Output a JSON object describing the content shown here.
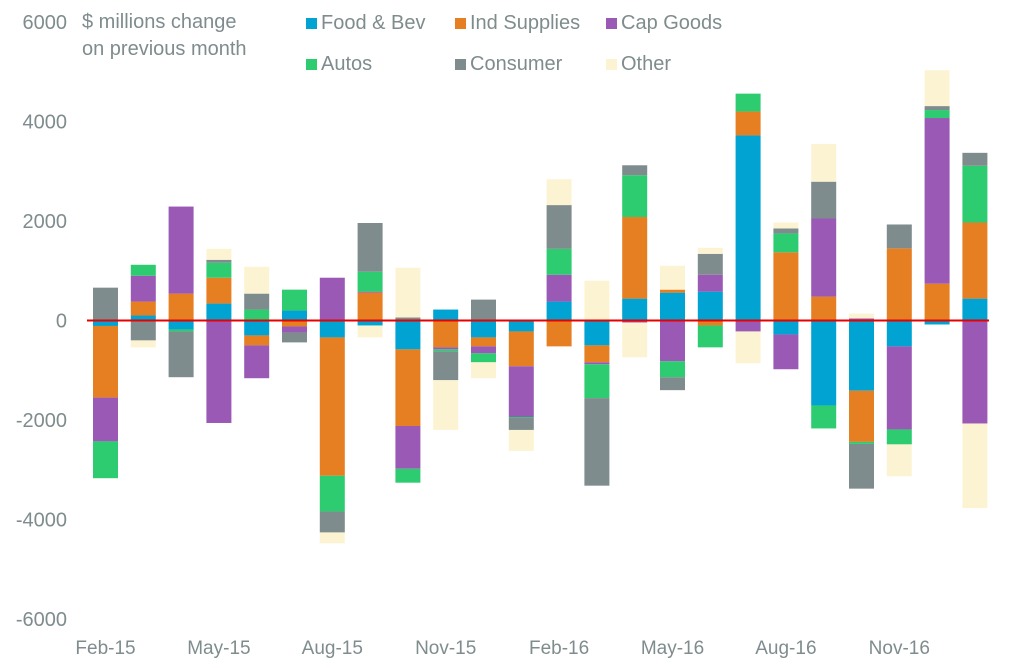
{
  "chart_data": {
    "type": "bar",
    "stacked": true,
    "title": "$ millions change on previous month",
    "title_lines": [
      "$ millions change",
      "on previous month"
    ],
    "xlabel": "",
    "ylabel": "",
    "ylim": [
      -6000,
      6000
    ],
    "yticks": [
      6000,
      4000,
      2000,
      0,
      -2000,
      -4000,
      -6000
    ],
    "ytick_labels": [
      "6000",
      "4000",
      "2000",
      "0",
      "-2000",
      "-4000",
      "-6000"
    ],
    "grid": false,
    "zero_line_color": "#e60000",
    "legend_position": "top",
    "categories": [
      "Feb-15",
      "Mar-15",
      "Apr-15",
      "May-15",
      "Jun-15",
      "Jul-15",
      "Aug-15",
      "Sep-15",
      "Oct-15",
      "Nov-15",
      "Dec-15",
      "Jan-16",
      "Feb-16",
      "Mar-16",
      "Apr-16",
      "May-16",
      "Jun-16",
      "Jul-16",
      "Aug-16",
      "Sep-16",
      "Oct-16",
      "Nov-16",
      "Dec-16",
      "Jan-17"
    ],
    "xtick_labels": [
      {
        "index": 0,
        "label": "Feb-15"
      },
      {
        "index": 3,
        "label": "May-15"
      },
      {
        "index": 6,
        "label": "Aug-15"
      },
      {
        "index": 9,
        "label": "Nov-15"
      },
      {
        "index": 12,
        "label": "Feb-16"
      },
      {
        "index": 15,
        "label": "May-16"
      },
      {
        "index": 18,
        "label": "Aug-16"
      },
      {
        "index": 21,
        "label": "Nov-16"
      }
    ],
    "series": [
      {
        "name": "Food & Bev",
        "color": "#00a3d1",
        "values": [
          -110,
          100,
          -180,
          340,
          -300,
          200,
          -340,
          -100,
          -580,
          220,
          -340,
          -220,
          380,
          -500,
          440,
          560,
          580,
          3720,
          -280,
          -1710,
          -1410,
          -520,
          -80,
          440
        ]
      },
      {
        "name": "Ind Supplies",
        "color": "#e67e22",
        "values": [
          -1440,
          280,
          540,
          520,
          -200,
          -120,
          -2780,
          560,
          -1540,
          -540,
          -180,
          -700,
          -520,
          -340,
          1640,
          60,
          -100,
          480,
          1370,
          480,
          -1030,
          1450,
          740,
          1530
        ]
      },
      {
        "name": "Cap Goods",
        "color": "#9b59b6",
        "values": [
          -880,
          520,
          1750,
          -2060,
          -660,
          -120,
          860,
          20,
          -860,
          -40,
          -140,
          -1020,
          540,
          -40,
          -40,
          -820,
          340,
          -220,
          -700,
          1570,
          40,
          -1670,
          3330,
          -2070
        ]
      },
      {
        "name": "Autos",
        "color": "#2ecc71",
        "values": [
          -740,
          220,
          -40,
          300,
          220,
          420,
          -720,
          400,
          -280,
          -40,
          -180,
          -20,
          520,
          -680,
          840,
          -320,
          -440,
          360,
          380,
          -460,
          -40,
          -300,
          160,
          1140
        ]
      },
      {
        "name": "Consumer",
        "color": "#7f8c8d",
        "values": [
          660,
          -400,
          -920,
          60,
          320,
          -200,
          -420,
          980,
          60,
          -580,
          420,
          -240,
          880,
          -1760,
          200,
          -260,
          420,
          0,
          100,
          740,
          -900,
          480,
          80,
          260
        ]
      },
      {
        "name": "Other",
        "color": "#fcf3d2",
        "values": [
          0,
          -140,
          0,
          220,
          540,
          0,
          -220,
          -240,
          1000,
          -1000,
          -320,
          -420,
          520,
          800,
          -700,
          480,
          120,
          -640,
          120,
          760,
          100,
          -640,
          720,
          -1700
        ]
      }
    ]
  }
}
